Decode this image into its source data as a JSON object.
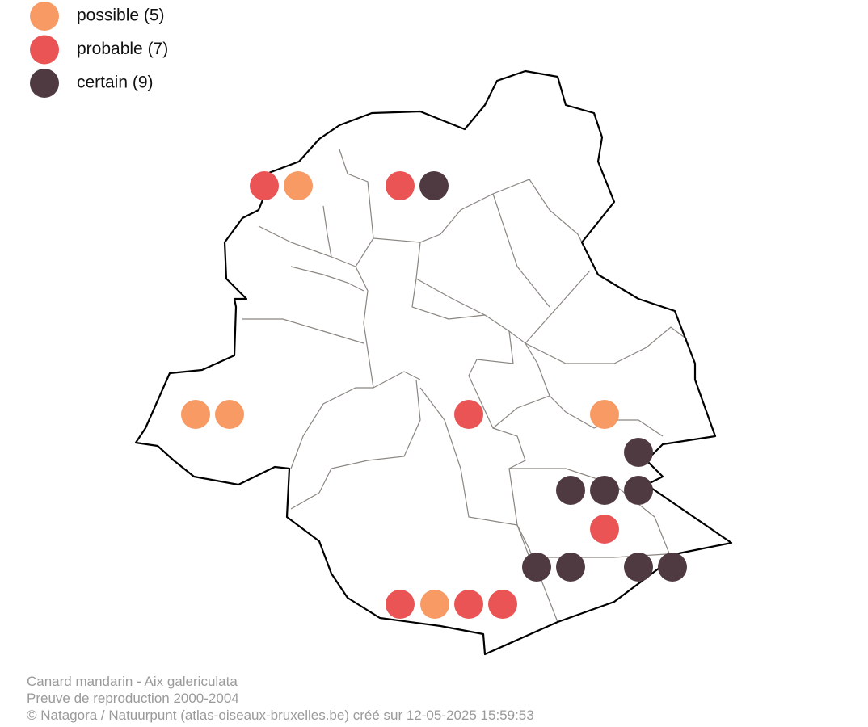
{
  "legend": [
    {
      "label": "possible (5)",
      "color": "#f79a64"
    },
    {
      "label": "probable (7)",
      "color": "#ea5455"
    },
    {
      "label": "certain (9)",
      "color": "#503a42"
    }
  ],
  "footer": [
    "Canard mandarin - Aix galericulata",
    "Preuve de reproduction 2000-2004",
    "© Natagora / Natuurpunt (atlas-oiseaux-bruxelles.be) créé sur 12-05-2025 15:59:53"
  ]
}
